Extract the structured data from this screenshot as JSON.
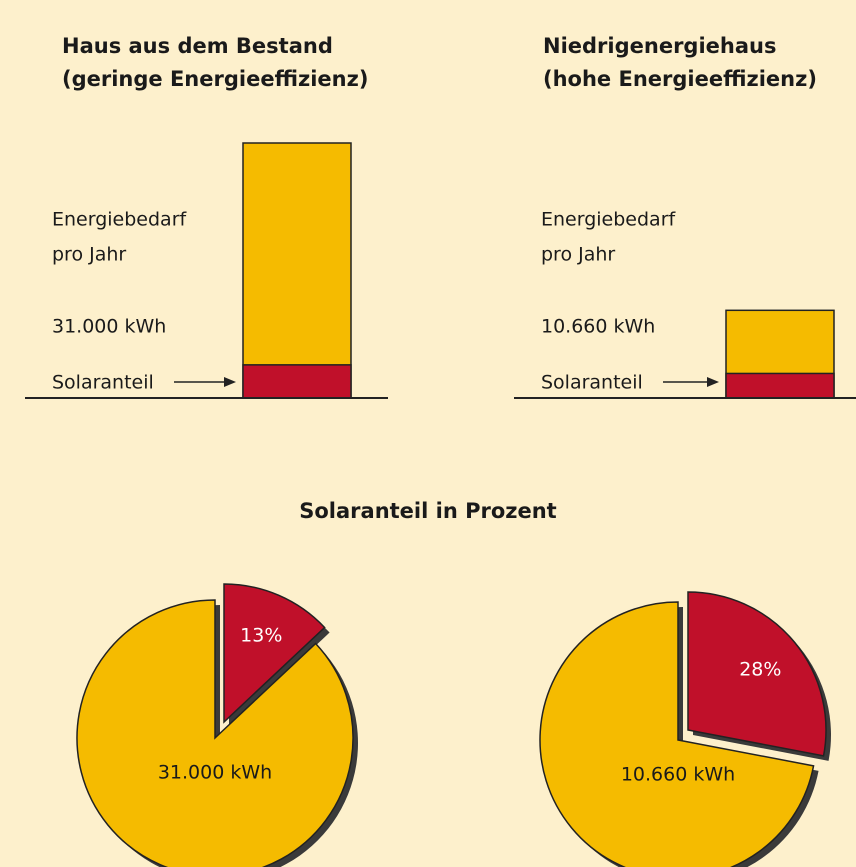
{
  "chart_data": [
    {
      "type": "bar",
      "title": [
        "Haus aus dem Bestand",
        "(geringe Energieeffizienz)"
      ],
      "label": [
        "Energiebedarf",
        "pro Jahr"
      ],
      "values": [
        31000
      ],
      "value_labels": [
        "31.000 kWh"
      ],
      "color": "#f5bb00",
      "solar": {
        "name": "Solaranteil",
        "color": "#c0102a",
        "values": [
          4030
        ]
      },
      "ylim": [
        0,
        31000
      ]
    },
    {
      "type": "bar",
      "title": [
        "Niedrigenergiehaus",
        "(hohe Energieeffizienz)"
      ],
      "label": [
        "Energiebedarf",
        "pro Jahr"
      ],
      "values": [
        10660
      ],
      "value_labels": [
        "10.660 kWh"
      ],
      "color": "#f5bb00",
      "solar": {
        "name": "Solaranteil",
        "color": "#c0102a",
        "values": [
          2985
        ]
      },
      "ylim": [
        0,
        31000
      ]
    },
    {
      "type": "pie",
      "title": "Solaranteil in Prozent",
      "values": [
        13,
        87
      ],
      "value_labels": [
        "13%",
        "31.000 kWh"
      ],
      "colors": [
        "#c0102a",
        "#f5bb00"
      ]
    },
    {
      "type": "pie",
      "values": [
        28,
        72
      ],
      "value_labels": [
        "28%",
        "10.660 kWh"
      ],
      "colors": [
        "#c0102a",
        "#f5bb00"
      ]
    }
  ]
}
